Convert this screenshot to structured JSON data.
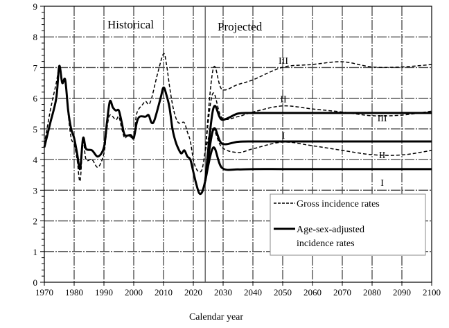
{
  "chart_data": {
    "type": "line",
    "xlabel": "Calendar year",
    "ylabel": "",
    "xlim": [
      1970,
      2100
    ],
    "ylim": [
      0,
      9
    ],
    "xticks": [
      "1970",
      "1980",
      "1990",
      "2000",
      "2010",
      "2020",
      "2030",
      "2040",
      "2050",
      "2060",
      "2070",
      "2080",
      "2090",
      "2100"
    ],
    "yticks": [
      "0",
      "1",
      "2",
      "3",
      "4",
      "5",
      "6",
      "7",
      "8",
      "9"
    ],
    "grid": true,
    "divider_year": 2024,
    "region_labels": {
      "historical": "Historical",
      "projected": "Projected"
    },
    "legend": {
      "placement": "bottom-right",
      "gross": "Gross incidence rates",
      "adjusted_line1": "Age-sex-adjusted",
      "adjusted_line2": "incidence rates"
    },
    "historical": {
      "gross": {
        "x": [
          1970,
          1972,
          1974,
          1975,
          1976,
          1977,
          1978,
          1979,
          1980,
          1981,
          1982,
          1983,
          1984,
          1986,
          1988,
          1990,
          1991,
          1992,
          1994,
          1995,
          1996,
          1997,
          1998,
          2000,
          2001,
          2003,
          2004,
          2005,
          2006,
          2008,
          2010,
          2011,
          2012,
          2013,
          2014,
          2015,
          2016,
          2017,
          2018,
          2019,
          2020,
          2021,
          2022,
          2023,
          2024
        ],
        "y": [
          4.5,
          5.6,
          6.5,
          7.0,
          6.5,
          6.6,
          5.5,
          4.7,
          4.5,
          4.0,
          3.3,
          4.6,
          4.0,
          4.0,
          3.75,
          4.2,
          5.0,
          5.45,
          5.3,
          5.4,
          5.0,
          4.7,
          4.8,
          4.75,
          5.5,
          5.8,
          5.9,
          5.8,
          6.0,
          6.8,
          7.45,
          7.1,
          6.4,
          5.8,
          5.4,
          5.2,
          5.2,
          5.2,
          4.9,
          4.6,
          4.0,
          3.7,
          3.6,
          3.7,
          4.3
        ]
      },
      "adjusted": {
        "x": [
          1970,
          1972,
          1974,
          1975,
          1976,
          1977,
          1978,
          1979,
          1980,
          1981,
          1982,
          1983,
          1984,
          1986,
          1988,
          1990,
          1991,
          1992,
          1993,
          1994,
          1995,
          1996,
          1997,
          1999,
          2000,
          2001,
          2002,
          2004,
          2005,
          2006,
          2007,
          2009,
          2010,
          2011,
          2012,
          2013,
          2014,
          2015,
          2016,
          2017,
          2018,
          2019,
          2020,
          2021,
          2022,
          2023,
          2024
        ],
        "y": [
          4.4,
          5.2,
          6.0,
          7.05,
          6.5,
          6.6,
          5.6,
          5.0,
          4.7,
          4.2,
          3.7,
          4.7,
          4.35,
          4.3,
          4.1,
          4.4,
          5.2,
          5.9,
          5.7,
          5.6,
          5.6,
          5.2,
          4.8,
          4.8,
          4.7,
          5.2,
          5.4,
          5.4,
          5.45,
          5.2,
          5.3,
          6.0,
          6.35,
          6.1,
          5.7,
          5.0,
          4.6,
          4.35,
          4.2,
          4.3,
          4.1,
          4.0,
          3.6,
          3.2,
          2.9,
          2.95,
          3.3
        ]
      }
    },
    "series": [
      {
        "name": "Gross III",
        "style": "dashed",
        "label": "III",
        "x": [
          2024,
          2026.7,
          2029.6,
          2035,
          2040,
          2050,
          2060,
          2070,
          2080,
          2090,
          2100
        ],
        "y": [
          4.3,
          6.97,
          6.29,
          6.45,
          6.6,
          7.01,
          7.1,
          7.19,
          7.02,
          7.02,
          7.1
        ]
      },
      {
        "name": "Gross II",
        "style": "dashed",
        "label": "II",
        "x": [
          2024,
          2026.5,
          2029.6,
          2035,
          2040,
          2050,
          2060,
          2070,
          2080,
          2090,
          2100
        ],
        "y": [
          4.3,
          6.15,
          5.36,
          5.4,
          5.55,
          5.75,
          5.65,
          5.55,
          5.43,
          5.45,
          5.58
        ]
      },
      {
        "name": "Gross I",
        "style": "dashed",
        "label": "I",
        "x": [
          2024,
          2026.5,
          2029.6,
          2035,
          2040,
          2050,
          2060,
          2070,
          2080,
          2090,
          2100
        ],
        "y": [
          4.3,
          5.0,
          4.4,
          4.23,
          4.35,
          4.57,
          4.45,
          4.3,
          4.16,
          4.15,
          4.3
        ]
      },
      {
        "name": "Adjusted III",
        "style": "solid",
        "label": "III",
        "x": [
          2024,
          2026.7,
          2029.6,
          2035,
          2040,
          2050,
          2060,
          2070,
          2080,
          2090,
          2100
        ],
        "y": [
          3.3,
          5.66,
          5.3,
          5.5,
          5.52,
          5.52,
          5.52,
          5.52,
          5.52,
          5.52,
          5.52
        ]
      },
      {
        "name": "Adjusted II",
        "style": "solid",
        "label": "II",
        "x": [
          2024,
          2026.7,
          2029.6,
          2035,
          2040,
          2050,
          2060,
          2070,
          2080,
          2090,
          2100
        ],
        "y": [
          3.3,
          4.98,
          4.52,
          4.58,
          4.59,
          4.59,
          4.59,
          4.59,
          4.59,
          4.59,
          4.59
        ]
      },
      {
        "name": "Adjusted I",
        "style": "solid",
        "label": "I",
        "x": [
          2024,
          2026.7,
          2029.6,
          2035,
          2040,
          2050,
          2060,
          2070,
          2080,
          2090,
          2100
        ],
        "y": [
          3.3,
          4.39,
          3.73,
          3.68,
          3.69,
          3.69,
          3.69,
          3.69,
          3.69,
          3.69,
          3.69
        ]
      }
    ]
  }
}
